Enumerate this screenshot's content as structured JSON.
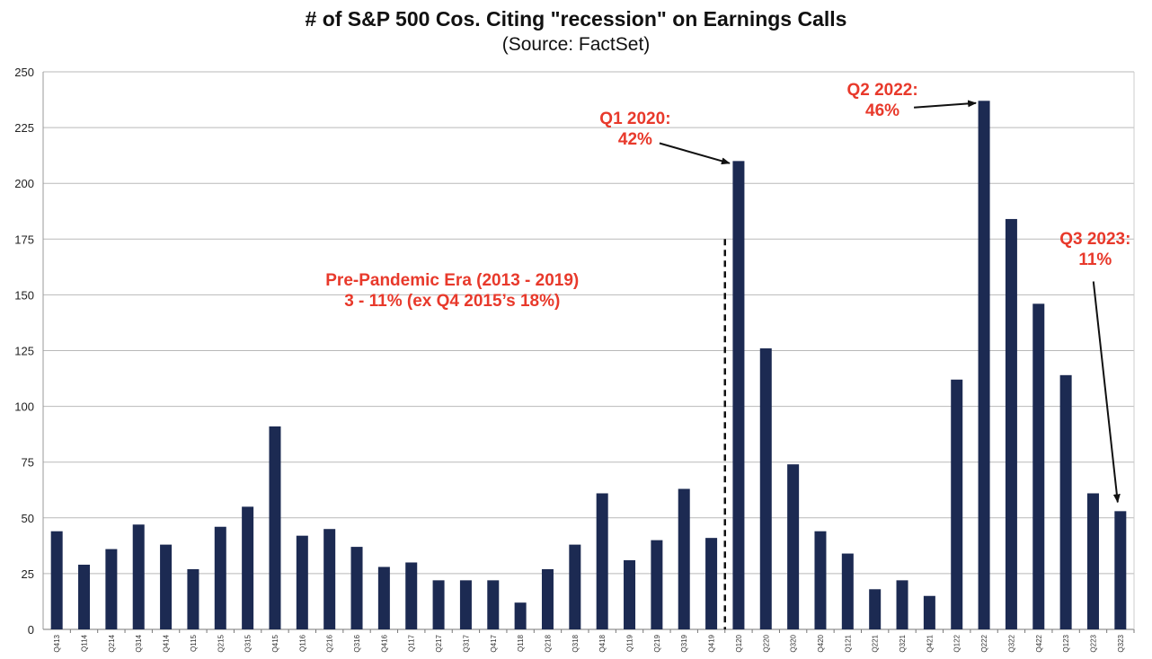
{
  "chart_data": {
    "type": "bar",
    "title": "# of S&P 500 Cos. Citing \"recession\" on Earnings Calls",
    "subtitle": "(Source: FactSet)",
    "xlabel": "",
    "ylabel": "",
    "ylim": [
      0,
      250
    ],
    "yticks": [
      0,
      25,
      50,
      75,
      100,
      125,
      150,
      175,
      200,
      225,
      250
    ],
    "grid": true,
    "legend": "none",
    "bar_color": "#1c2a52",
    "annotation_color": "#e8392b",
    "categories": [
      "Q413",
      "Q114",
      "Q214",
      "Q314",
      "Q414",
      "Q115",
      "Q215",
      "Q315",
      "Q415",
      "Q116",
      "Q216",
      "Q316",
      "Q416",
      "Q117",
      "Q217",
      "Q317",
      "Q417",
      "Q118",
      "Q218",
      "Q318",
      "Q418",
      "Q119",
      "Q219",
      "Q319",
      "Q419",
      "Q120",
      "Q220",
      "Q320",
      "Q420",
      "Q121",
      "Q221",
      "Q321",
      "Q421",
      "Q122",
      "Q222",
      "Q322",
      "Q422",
      "Q123",
      "Q223",
      "Q323"
    ],
    "values": [
      44,
      29,
      36,
      47,
      38,
      27,
      46,
      55,
      91,
      42,
      45,
      37,
      28,
      30,
      22,
      22,
      22,
      12,
      27,
      38,
      61,
      31,
      40,
      63,
      41,
      210,
      126,
      74,
      44,
      34,
      18,
      22,
      15,
      112,
      237,
      184,
      146,
      114,
      61,
      53
    ],
    "annotations": [
      {
        "lines": [
          "Pre-Pandemic Era (2013 - 2019)",
          "3 - 11% (ex Q4 2015’s 18%)"
        ]
      },
      {
        "lines": [
          "Q1 2020:",
          "42%"
        ],
        "points_to": "Q120"
      },
      {
        "lines": [
          "Q2 2022:",
          "46%"
        ],
        "points_to": "Q222"
      },
      {
        "lines": [
          "Q3 2023:",
          "11%"
        ],
        "points_to": "Q323"
      }
    ]
  }
}
